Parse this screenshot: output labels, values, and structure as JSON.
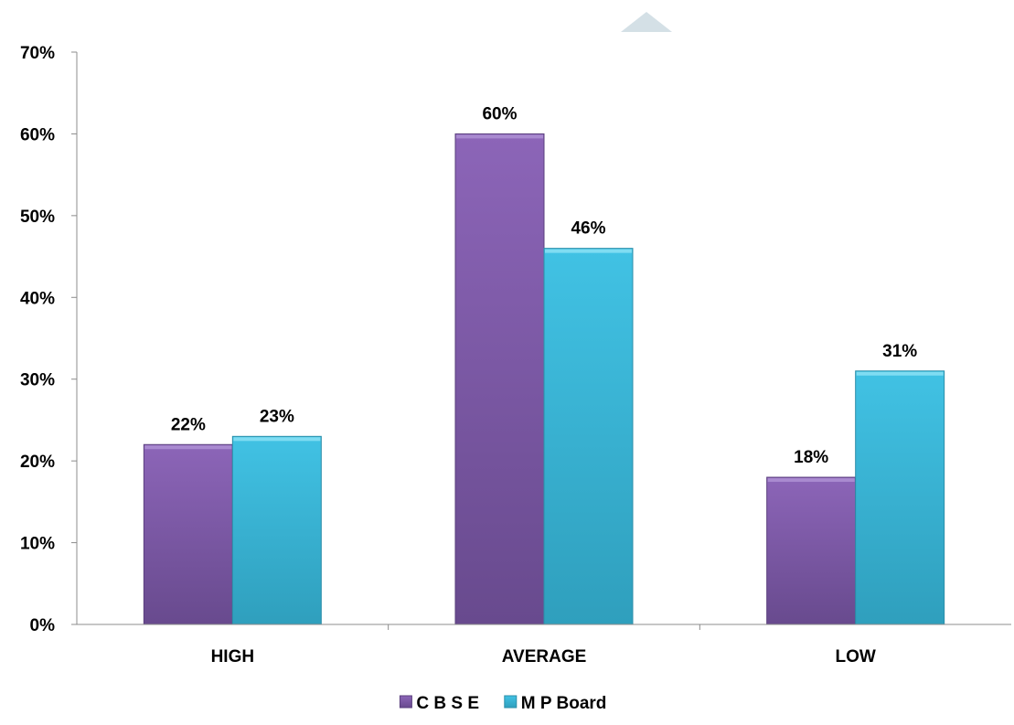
{
  "chart_data": {
    "type": "bar",
    "categories": [
      "HIGH",
      "AVERAGE",
      "LOW"
    ],
    "series": [
      {
        "name": "C B S E",
        "values": [
          22,
          60,
          18
        ],
        "labels": [
          "22%",
          "60%",
          "18%"
        ]
      },
      {
        "name": "M P Board",
        "values": [
          23,
          46,
          31
        ],
        "labels": [
          "23%",
          "46%",
          "31%"
        ]
      }
    ],
    "y_ticks": [
      "0%",
      "10%",
      "20%",
      "30%",
      "40%",
      "50%",
      "60%",
      "70%"
    ],
    "ylim": [
      0,
      70
    ],
    "grid": false,
    "legend_position": "bottom"
  },
  "colors": {
    "series": [
      "#7b55a5",
      "#33b4d6"
    ],
    "axis": "#8c8c8c",
    "decoration": "#d4e0e6"
  }
}
